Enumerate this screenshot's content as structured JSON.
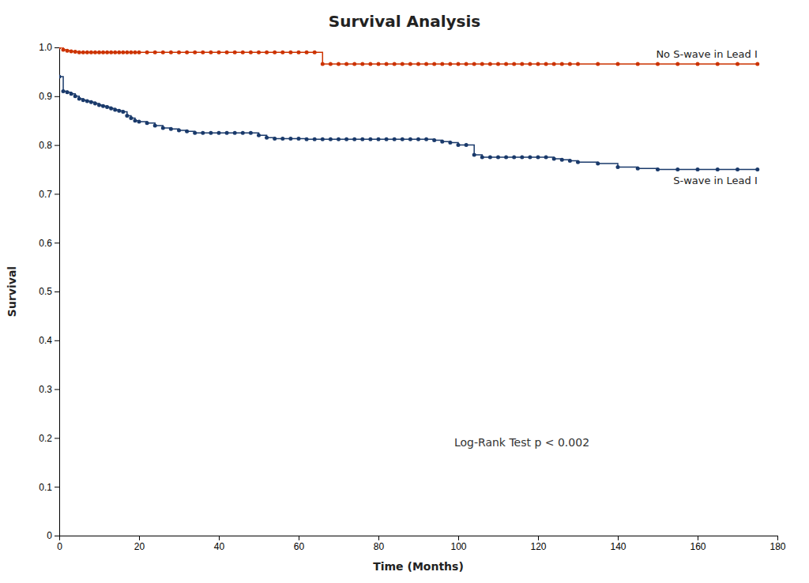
{
  "chart_data": {
    "type": "line",
    "title": "Survival Analysis",
    "xlabel": "Time (Months)",
    "ylabel": "Survival",
    "annotation": "Log-Rank Test p < 0.002",
    "x": [
      0,
      1,
      2,
      3,
      4,
      5,
      6,
      7,
      8,
      9,
      10,
      11,
      12,
      13,
      14,
      15,
      16,
      17,
      18,
      19,
      20,
      22,
      24,
      26,
      28,
      30,
      32,
      34,
      36,
      38,
      40,
      42,
      44,
      46,
      48,
      50,
      52,
      54,
      56,
      58,
      60,
      62,
      64,
      66,
      68,
      70,
      72,
      74,
      76,
      78,
      80,
      82,
      84,
      86,
      88,
      90,
      92,
      94,
      96,
      98,
      100,
      102,
      104,
      106,
      108,
      110,
      112,
      114,
      116,
      118,
      120,
      122,
      124,
      126,
      128,
      130,
      135,
      140,
      145,
      150,
      155,
      160,
      165,
      170,
      175
    ],
    "series": [
      {
        "name": "No S-wave in Lead I",
        "color": "#cc3300",
        "values": [
          1.0,
          0.995,
          0.993,
          0.992,
          0.991,
          0.99,
          0.99,
          0.99,
          0.99,
          0.99,
          0.99,
          0.99,
          0.99,
          0.99,
          0.99,
          0.99,
          0.99,
          0.99,
          0.99,
          0.99,
          0.99,
          0.99,
          0.99,
          0.99,
          0.99,
          0.99,
          0.99,
          0.99,
          0.99,
          0.99,
          0.99,
          0.99,
          0.99,
          0.99,
          0.99,
          0.99,
          0.99,
          0.99,
          0.99,
          0.99,
          0.99,
          0.99,
          0.99,
          0.966,
          0.966,
          0.966,
          0.966,
          0.966,
          0.966,
          0.966,
          0.966,
          0.966,
          0.966,
          0.966,
          0.966,
          0.966,
          0.966,
          0.966,
          0.966,
          0.966,
          0.966,
          0.966,
          0.966,
          0.966,
          0.966,
          0.966,
          0.966,
          0.966,
          0.966,
          0.966,
          0.966,
          0.966,
          0.966,
          0.966,
          0.966,
          0.966,
          0.966,
          0.966,
          0.966,
          0.966,
          0.966,
          0.966,
          0.966,
          0.966,
          0.966
        ]
      },
      {
        "name": "S-wave in Lead I",
        "color": "#1a3a6b",
        "values": [
          0.94,
          0.91,
          0.908,
          0.905,
          0.9,
          0.895,
          0.892,
          0.89,
          0.888,
          0.885,
          0.882,
          0.88,
          0.878,
          0.875,
          0.872,
          0.87,
          0.868,
          0.86,
          0.855,
          0.85,
          0.848,
          0.845,
          0.84,
          0.835,
          0.833,
          0.83,
          0.828,
          0.825,
          0.825,
          0.825,
          0.825,
          0.825,
          0.825,
          0.825,
          0.825,
          0.82,
          0.815,
          0.813,
          0.813,
          0.813,
          0.813,
          0.812,
          0.812,
          0.812,
          0.812,
          0.812,
          0.812,
          0.812,
          0.812,
          0.812,
          0.812,
          0.812,
          0.812,
          0.812,
          0.812,
          0.812,
          0.812,
          0.81,
          0.807,
          0.805,
          0.8,
          0.8,
          0.78,
          0.775,
          0.775,
          0.775,
          0.775,
          0.775,
          0.775,
          0.775,
          0.775,
          0.775,
          0.772,
          0.77,
          0.768,
          0.765,
          0.762,
          0.755,
          0.752,
          0.75,
          0.75,
          0.75,
          0.75,
          0.75,
          0.75
        ]
      }
    ],
    "xlim": [
      0,
      180
    ],
    "ylim": [
      0,
      1.0
    ],
    "xticks": [
      0,
      20,
      40,
      60,
      80,
      100,
      120,
      140,
      160,
      180
    ],
    "yticks": [
      0,
      0.1,
      0.2,
      0.3,
      0.4,
      0.5,
      0.6,
      0.7,
      0.8,
      0.9,
      {
        "value": 1.0,
        "label": "1.0"
      }
    ],
    "grid": false,
    "marker": "circle",
    "line_style": "step"
  }
}
